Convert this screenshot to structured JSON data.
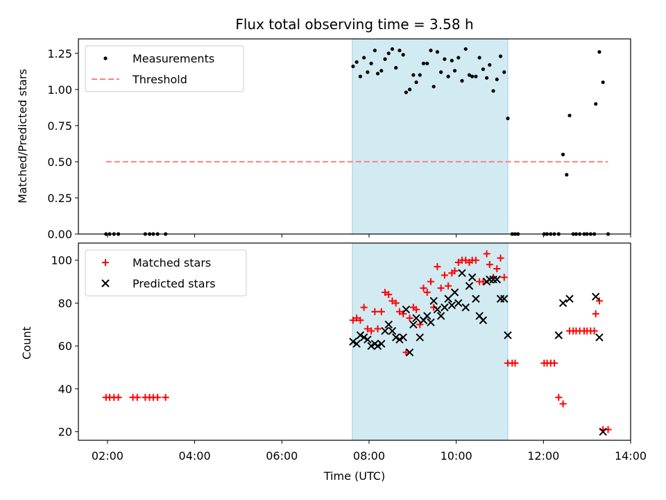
{
  "chart_data": {
    "type": "scatter",
    "title": "Flux total observing time = 3.58 h",
    "xlabel": "Time (UTC)",
    "x_unit": "hours UTC",
    "xlim": [
      "01:20",
      "14:00"
    ],
    "xticks": [
      "02:00",
      "04:00",
      "06:00",
      "08:00",
      "10:00",
      "12:00",
      "14:00"
    ],
    "shaded_interval": {
      "start": "07:37",
      "end": "11:11",
      "color": "#add8e6"
    },
    "panels": [
      {
        "name": "ratio",
        "ylabel": "Matched/Predicted stars",
        "ylim": [
          0,
          1.35
        ],
        "yticks": [
          "0.00",
          "0.25",
          "0.50",
          "0.75",
          "1.00",
          "1.25"
        ],
        "legend_position": "upper-left",
        "series": [
          {
            "name": "Measurements",
            "marker": "dot",
            "color": "#000000",
            "points": [
              [
                "01:58",
                0
              ],
              [
                "02:03",
                0
              ],
              [
                "02:09",
                0
              ],
              [
                "02:15",
                0
              ],
              [
                "02:52",
                0
              ],
              [
                "02:58",
                0
              ],
              [
                "03:03",
                0
              ],
              [
                "03:09",
                0
              ],
              [
                "03:20",
                0
              ],
              [
                "07:38",
                1.16
              ],
              [
                "07:43",
                1.19
              ],
              [
                "07:48",
                1.09
              ],
              [
                "07:53",
                1.22
              ],
              [
                "07:58",
                1.12
              ],
              [
                "08:03",
                1.18
              ],
              [
                "08:08",
                1.27
              ],
              [
                "08:12",
                1.11
              ],
              [
                "08:17",
                1.13
              ],
              [
                "08:22",
                1.21
              ],
              [
                "08:27",
                1.25
              ],
              [
                "08:32",
                1.28
              ],
              [
                "08:37",
                1.15
              ],
              [
                "08:42",
                1.27
              ],
              [
                "08:47",
                1.24
              ],
              [
                "08:51",
                0.98
              ],
              [
                "08:56",
                1.0
              ],
              [
                "09:01",
                1.1
              ],
              [
                "09:05",
                1.05
              ],
              [
                "09:10",
                1.1
              ],
              [
                "09:15",
                1.18
              ],
              [
                "09:20",
                1.18
              ],
              [
                "09:25",
                1.27
              ],
              [
                "09:29",
                1.02
              ],
              [
                "09:34",
                1.26
              ],
              [
                "09:39",
                1.12
              ],
              [
                "09:44",
                1.21
              ],
              [
                "09:49",
                1.09
              ],
              [
                "09:54",
                1.2
              ],
              [
                "09:58",
                1.13
              ],
              [
                "10:03",
                1.22
              ],
              [
                "10:08",
                1.06
              ],
              [
                "10:13",
                1.28
              ],
              [
                "10:18",
                1.1
              ],
              [
                "10:22",
                1.09
              ],
              [
                "10:27",
                1.09
              ],
              [
                "10:32",
                1.22
              ],
              [
                "10:37",
                1.14
              ],
              [
                "10:42",
                1.08
              ],
              [
                "10:46",
                1.17
              ],
              [
                "10:51",
                0.99
              ],
              [
                "10:56",
                1.07
              ],
              [
                "11:01",
                1.23
              ],
              [
                "11:06",
                1.12
              ],
              [
                "11:11",
                0.8
              ],
              [
                "11:17",
                0
              ],
              [
                "11:21",
                0
              ],
              [
                "11:25",
                0
              ],
              [
                "12:01",
                0
              ],
              [
                "12:05",
                0
              ],
              [
                "12:10",
                0
              ],
              [
                "12:15",
                0
              ],
              [
                "12:21",
                0
              ],
              [
                "12:27",
                0.55
              ],
              [
                "12:32",
                0.41
              ],
              [
                "12:36",
                0.82
              ],
              [
                "12:41",
                0
              ],
              [
                "12:45",
                0
              ],
              [
                "12:50",
                0
              ],
              [
                "12:56",
                0
              ],
              [
                "13:00",
                0
              ],
              [
                "13:05",
                0
              ],
              [
                "13:10",
                0
              ],
              [
                "13:12",
                0.9
              ],
              [
                "13:17",
                1.26
              ],
              [
                "13:22",
                1.05
              ],
              [
                "13:29",
                0
              ]
            ]
          },
          {
            "name": "Threshold",
            "marker": "dashed-line",
            "color": "#ff7f7f",
            "points": [
              [
                "01:58",
                0.5
              ],
              [
                "13:29",
                0.5
              ]
            ]
          }
        ]
      },
      {
        "name": "counts",
        "ylabel": "Count",
        "ylim": [
          16,
          108
        ],
        "yticks": [
          "20",
          "40",
          "60",
          "80",
          "100"
        ],
        "legend_position": "upper-left",
        "series": [
          {
            "name": "Matched stars",
            "marker": "plus",
            "color": "#ff0000",
            "points": [
              [
                "01:58",
                36
              ],
              [
                "02:03",
                36
              ],
              [
                "02:09",
                36
              ],
              [
                "02:15",
                36
              ],
              [
                "02:35",
                36
              ],
              [
                "02:41",
                36
              ],
              [
                "02:52",
                36
              ],
              [
                "02:58",
                36
              ],
              [
                "03:03",
                36
              ],
              [
                "03:09",
                36
              ],
              [
                "03:20",
                36
              ],
              [
                "07:38",
                72
              ],
              [
                "07:43",
                73
              ],
              [
                "07:48",
                72
              ],
              [
                "07:53",
                78
              ],
              [
                "07:58",
                68
              ],
              [
                "08:03",
                67
              ],
              [
                "08:08",
                76
              ],
              [
                "08:12",
                68
              ],
              [
                "08:17",
                76
              ],
              [
                "08:22",
                85
              ],
              [
                "08:27",
                84
              ],
              [
                "08:32",
                81
              ],
              [
                "08:37",
                80
              ],
              [
                "08:42",
                76
              ],
              [
                "08:47",
                75
              ],
              [
                "08:51",
                57
              ],
              [
                "08:56",
                73
              ],
              [
                "09:01",
                78
              ],
              [
                "09:05",
                77
              ],
              [
                "09:10",
                70
              ],
              [
                "09:15",
                87
              ],
              [
                "09:20",
                85
              ],
              [
                "09:25",
                90
              ],
              [
                "09:29",
                78
              ],
              [
                "09:34",
                97
              ],
              [
                "09:39",
                87
              ],
              [
                "09:44",
                93
              ],
              [
                "09:49",
                88
              ],
              [
                "09:54",
                94
              ],
              [
                "09:58",
                95
              ],
              [
                "10:03",
                99
              ],
              [
                "10:08",
                100
              ],
              [
                "10:13",
                100
              ],
              [
                "10:18",
                99
              ],
              [
                "10:22",
                100
              ],
              [
                "10:27",
                100
              ],
              [
                "10:32",
                90
              ],
              [
                "10:37",
                90
              ],
              [
                "10:42",
                103
              ],
              [
                "10:46",
                98
              ],
              [
                "10:51",
                92
              ],
              [
                "10:56",
                96
              ],
              [
                "11:01",
                101
              ],
              [
                "11:06",
                92
              ],
              [
                "11:11",
                52
              ],
              [
                "11:17",
                52
              ],
              [
                "11:21",
                52
              ],
              [
                "12:01",
                52
              ],
              [
                "12:05",
                52
              ],
              [
                "12:10",
                52
              ],
              [
                "12:15",
                52
              ],
              [
                "12:21",
                36
              ],
              [
                "12:27",
                33
              ],
              [
                "12:36",
                67
              ],
              [
                "12:41",
                67
              ],
              [
                "12:45",
                67
              ],
              [
                "12:50",
                67
              ],
              [
                "12:56",
                67
              ],
              [
                "13:00",
                67
              ],
              [
                "13:05",
                67
              ],
              [
                "13:10",
                67
              ],
              [
                "13:12",
                75
              ],
              [
                "13:17",
                81
              ],
              [
                "13:22",
                21
              ],
              [
                "13:29",
                21
              ]
            ]
          },
          {
            "name": "Predicted stars",
            "marker": "x",
            "color": "#000000",
            "points": [
              [
                "07:38",
                62
              ],
              [
                "07:43",
                61
              ],
              [
                "07:48",
                65
              ],
              [
                "07:53",
                64
              ],
              [
                "07:58",
                63
              ],
              [
                "08:03",
                60
              ],
              [
                "08:08",
                61
              ],
              [
                "08:12",
                60
              ],
              [
                "08:17",
                61
              ],
              [
                "08:22",
                67
              ],
              [
                "08:27",
                70
              ],
              [
                "08:32",
                67
              ],
              [
                "08:37",
                64
              ],
              [
                "08:42",
                63
              ],
              [
                "08:47",
                64
              ],
              [
                "08:51",
                77
              ],
              [
                "08:56",
                57
              ],
              [
                "09:01",
                70
              ],
              [
                "09:05",
                73
              ],
              [
                "09:10",
                64
              ],
              [
                "09:15",
                72
              ],
              [
                "09:20",
                74
              ],
              [
                "09:25",
                71
              ],
              [
                "09:29",
                81
              ],
              [
                "09:34",
                77
              ],
              [
                "09:39",
                74
              ],
              [
                "09:44",
                78
              ],
              [
                "09:49",
                82
              ],
              [
                "09:54",
                79
              ],
              [
                "09:58",
                85
              ],
              [
                "10:03",
                80
              ],
              [
                "10:08",
                94
              ],
              [
                "10:13",
                78
              ],
              [
                "10:18",
                88
              ],
              [
                "10:22",
                92
              ],
              [
                "10:27",
                82
              ],
              [
                "10:32",
                74
              ],
              [
                "10:37",
                72
              ],
              [
                "10:42",
                90
              ],
              [
                "10:46",
                91
              ],
              [
                "10:51",
                91
              ],
              [
                "10:56",
                91
              ],
              [
                "11:01",
                82
              ],
              [
                "11:06",
                82
              ],
              [
                "11:11",
                65
              ],
              [
                "12:21",
                65
              ],
              [
                "12:27",
                80
              ],
              [
                "12:36",
                82
              ],
              [
                "13:12",
                83
              ],
              [
                "13:17",
                64
              ],
              [
                "13:22",
                20
              ]
            ]
          }
        ]
      }
    ]
  }
}
